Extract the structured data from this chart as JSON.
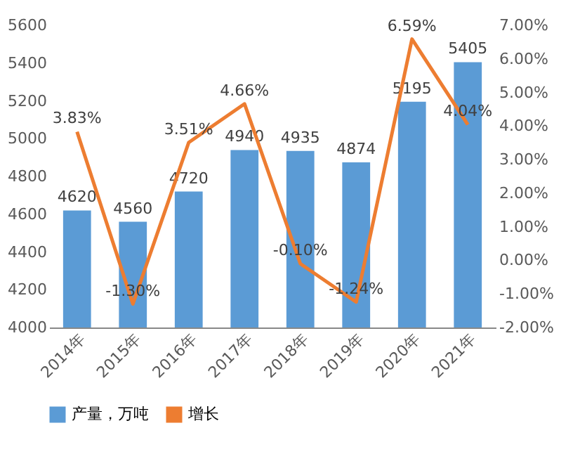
{
  "chart_data": {
    "type": "bar",
    "categories": [
      "2014年",
      "2015年",
      "2016年",
      "2017年",
      "2018年",
      "2019年",
      "2020年",
      "2021年"
    ],
    "series": [
      {
        "name": "产量，万吨",
        "color": "#5b9bd5",
        "values": [
          4620,
          4560,
          4720,
          4940,
          4935,
          4874,
          5195,
          5405
        ],
        "value_labels": [
          "4620",
          "4560",
          "4720",
          "4940",
          "4935",
          "4874",
          "5195",
          "5405"
        ]
      },
      {
        "name": "增长",
        "type": "line",
        "axis": "y2",
        "color": "#ed7d31",
        "values": [
          3.83,
          -1.3,
          3.51,
          4.66,
          -0.1,
          -1.24,
          6.59,
          4.04
        ],
        "value_labels": [
          "3.83%",
          "-1.30%",
          "3.51%",
          "4.66%",
          "-0.10%",
          "-1.24%",
          "6.59%",
          "4.04%"
        ]
      }
    ],
    "ylim": [
      4000,
      5600
    ],
    "yticks": [
      4000,
      4200,
      4400,
      4600,
      4800,
      5000,
      5200,
      5400,
      5600
    ],
    "y2lim": [
      -2,
      7
    ],
    "y2ticks": [
      {
        "value": -2,
        "label": "-2.00%"
      },
      {
        "value": -1,
        "label": "-1.00%"
      },
      {
        "value": 0,
        "label": "0.00%"
      },
      {
        "value": 1,
        "label": "1.00%"
      },
      {
        "value": 2,
        "label": "2.00%"
      },
      {
        "value": 3,
        "label": "3.00%"
      },
      {
        "value": 4,
        "label": "4.00%"
      },
      {
        "value": 5,
        "label": "5.00%"
      },
      {
        "value": 6,
        "label": "6.00%"
      },
      {
        "value": 7,
        "label": "7.00%"
      }
    ],
    "legend": "bottom",
    "grid": false,
    "marker": "none",
    "line_style": "solid"
  }
}
